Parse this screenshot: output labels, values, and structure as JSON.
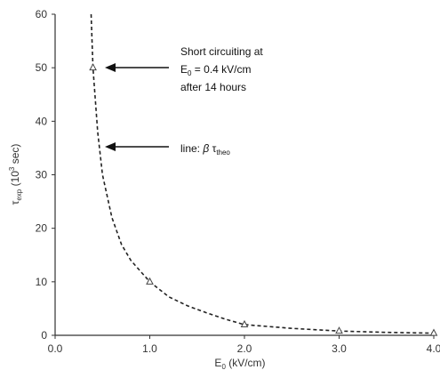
{
  "chart_data": {
    "type": "scatter",
    "x_ticks": [
      "0.0",
      "1.0",
      "2.0",
      "3.0",
      "4.0"
    ],
    "y_ticks": [
      "0",
      "10",
      "20",
      "30",
      "40",
      "50",
      "60"
    ],
    "xlim": [
      0,
      4
    ],
    "ylim": [
      0,
      60
    ],
    "xlabel": {
      "main": "E",
      "sub": "0",
      "rest": " (kV/cm)"
    },
    "ylabel": {
      "main": "τ",
      "sub": "exp",
      "mid": " (10",
      "sup": "3",
      "rest": " sec)"
    },
    "series": [
      {
        "points": [
          {
            "x": 0.4,
            "y": 50
          },
          {
            "x": 1.0,
            "y": 10
          },
          {
            "x": 2.0,
            "y": 2
          },
          {
            "x": 3.0,
            "y": 0.8
          },
          {
            "x": 4.0,
            "y": 0.4
          }
        ]
      }
    ],
    "curve": {
      "style": "dashed",
      "samples": [
        {
          "x": 0.38,
          "y": 60
        },
        {
          "x": 0.4,
          "y": 50
        },
        {
          "x": 0.45,
          "y": 38
        },
        {
          "x": 0.5,
          "y": 30
        },
        {
          "x": 0.6,
          "y": 22
        },
        {
          "x": 0.7,
          "y": 17
        },
        {
          "x": 0.8,
          "y": 14
        },
        {
          "x": 1.0,
          "y": 10
        },
        {
          "x": 1.2,
          "y": 7.2
        },
        {
          "x": 1.4,
          "y": 5.5
        },
        {
          "x": 1.6,
          "y": 4.2
        },
        {
          "x": 1.8,
          "y": 3.0
        },
        {
          "x": 2.0,
          "y": 2.0
        },
        {
          "x": 2.5,
          "y": 1.3
        },
        {
          "x": 3.0,
          "y": 0.8
        },
        {
          "x": 3.5,
          "y": 0.55
        },
        {
          "x": 4.0,
          "y": 0.4
        }
      ]
    },
    "annotations": {
      "short_circuit": {
        "line1": "Short circuiting at",
        "line2_main": "E",
        "line2_sub": "0",
        "line2_rest": " = 0.4 kV/cm",
        "line3": "after 14 hours",
        "arrow_to": {
          "x": 0.45,
          "y": 50
        }
      },
      "line_label": {
        "prefix": "line: ",
        "beta": "β",
        "tau": "τ",
        "tau_sub": "theo",
        "arrow_to": {
          "x": 0.45,
          "y": 35.5
        }
      }
    }
  }
}
